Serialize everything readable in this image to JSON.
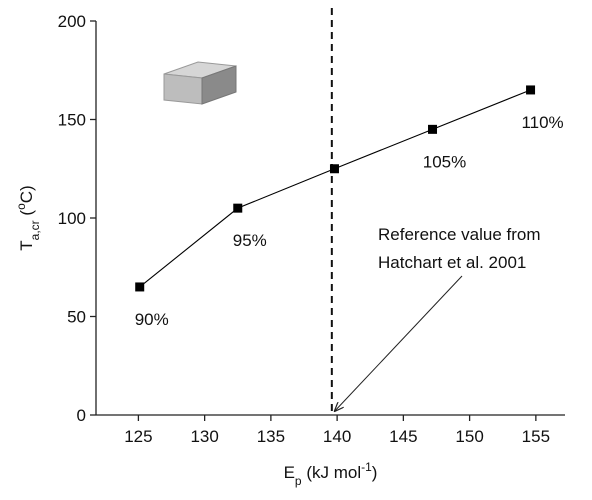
{
  "chart_data": {
    "type": "line",
    "x": [
      125.1,
      132.5,
      139.8,
      147.2,
      154.6
    ],
    "series": [
      {
        "color": "#000000",
        "values": [
          65,
          105,
          125,
          145,
          165
        ]
      }
    ],
    "point_labels": [
      "90%",
      "95%",
      "",
      "105%",
      "110%"
    ],
    "xlim": [
      121.8,
      157.2
    ],
    "xticks": [
      125,
      130,
      135,
      140,
      145,
      150,
      155
    ],
    "ylim": [
      0,
      200
    ],
    "yticks": [
      0,
      50,
      100,
      150,
      200
    ],
    "x_label": [
      "E",
      "p",
      " (kJ mol",
      "-1",
      ")"
    ],
    "y_label": [
      "T",
      "a,cr",
      " (",
      "o",
      "C)"
    ],
    "vline": 139.6,
    "annotation": [
      "Reference value from",
      "Hatchart et al. 2001"
    ]
  }
}
